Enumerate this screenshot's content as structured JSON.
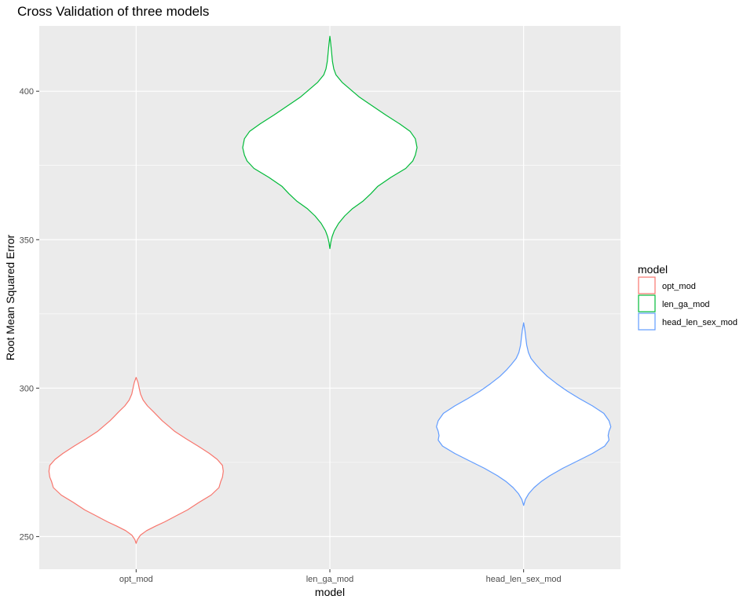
{
  "chart_data": {
    "type": "violin",
    "title": "Cross Validation of three models",
    "xlabel": "model",
    "ylabel": "Root Mean Squared Error",
    "categories": [
      "opt_mod",
      "len_ga_mod",
      "head_len_sex_mod"
    ],
    "ylim": [
      239,
      422
    ],
    "yticks": [
      250,
      300,
      350,
      400
    ],
    "grid": true,
    "legend": {
      "title": "model",
      "placement": "right",
      "entries": [
        "opt_mod",
        "len_ga_mod",
        "head_len_sex_mod"
      ]
    },
    "series": [
      {
        "name": "opt_mod",
        "color": "#F8766D",
        "min": 247.7,
        "max": 303.6,
        "profile": [
          [
            247.7,
            0.0
          ],
          [
            249.0,
            0.015
          ],
          [
            250.5,
            0.05
          ],
          [
            252.0,
            0.12
          ],
          [
            253.5,
            0.22
          ],
          [
            255.0,
            0.33
          ],
          [
            257.0,
            0.46
          ],
          [
            259.0,
            0.59
          ],
          [
            261.5,
            0.72
          ],
          [
            264.0,
            0.86
          ],
          [
            266.5,
            0.95
          ],
          [
            268.5,
            0.97
          ],
          [
            270.0,
            0.99
          ],
          [
            272.0,
            1.0
          ],
          [
            274.0,
            0.99
          ],
          [
            276.0,
            0.93
          ],
          [
            278.0,
            0.84
          ],
          [
            280.5,
            0.71
          ],
          [
            283.0,
            0.57
          ],
          [
            285.5,
            0.44
          ],
          [
            287.5,
            0.36
          ],
          [
            289.0,
            0.3
          ],
          [
            290.5,
            0.25
          ],
          [
            292.0,
            0.2
          ],
          [
            294.0,
            0.13
          ],
          [
            296.0,
            0.08
          ],
          [
            298.0,
            0.05
          ],
          [
            300.0,
            0.035
          ],
          [
            302.0,
            0.02
          ],
          [
            303.6,
            0.0
          ]
        ]
      },
      {
        "name": "len_ga_mod",
        "color": "#00BA38",
        "min": 347.0,
        "max": 418.5,
        "profile": [
          [
            347.0,
            0.0
          ],
          [
            349.0,
            0.01
          ],
          [
            351.0,
            0.025
          ],
          [
            353.0,
            0.05
          ],
          [
            355.5,
            0.1
          ],
          [
            358.0,
            0.17
          ],
          [
            360.5,
            0.26
          ],
          [
            363.0,
            0.38
          ],
          [
            365.5,
            0.47
          ],
          [
            368.0,
            0.55
          ],
          [
            371.0,
            0.7
          ],
          [
            374.0,
            0.87
          ],
          [
            376.5,
            0.95
          ],
          [
            378.5,
            0.98
          ],
          [
            381.0,
            1.0
          ],
          [
            384.0,
            0.98
          ],
          [
            386.5,
            0.92
          ],
          [
            389.0,
            0.8
          ],
          [
            392.0,
            0.64
          ],
          [
            395.0,
            0.49
          ],
          [
            398.0,
            0.34
          ],
          [
            400.5,
            0.24
          ],
          [
            403.0,
            0.14
          ],
          [
            405.5,
            0.07
          ],
          [
            407.5,
            0.045
          ],
          [
            410.0,
            0.03
          ],
          [
            413.0,
            0.02
          ],
          [
            416.0,
            0.01
          ],
          [
            418.5,
            0.0
          ]
        ]
      },
      {
        "name": "head_len_sex_mod",
        "color": "#619CFF",
        "min": 260.5,
        "max": 322.0,
        "profile": [
          [
            260.5,
            0.0
          ],
          [
            262.5,
            0.02
          ],
          [
            264.5,
            0.06
          ],
          [
            266.5,
            0.12
          ],
          [
            268.5,
            0.2
          ],
          [
            270.5,
            0.3
          ],
          [
            273.0,
            0.45
          ],
          [
            275.5,
            0.62
          ],
          [
            278.0,
            0.79
          ],
          [
            280.5,
            0.93
          ],
          [
            282.5,
            0.98
          ],
          [
            284.0,
            0.97
          ],
          [
            285.5,
            0.98
          ],
          [
            287.0,
            1.0
          ],
          [
            289.0,
            0.98
          ],
          [
            291.5,
            0.92
          ],
          [
            294.0,
            0.79
          ],
          [
            296.5,
            0.64
          ],
          [
            299.0,
            0.5
          ],
          [
            301.5,
            0.38
          ],
          [
            304.0,
            0.27
          ],
          [
            306.0,
            0.2
          ],
          [
            308.0,
            0.14
          ],
          [
            310.0,
            0.085
          ],
          [
            312.0,
            0.055
          ],
          [
            314.5,
            0.035
          ],
          [
            317.0,
            0.025
          ],
          [
            319.5,
            0.015
          ],
          [
            322.0,
            0.0
          ]
        ]
      }
    ]
  }
}
